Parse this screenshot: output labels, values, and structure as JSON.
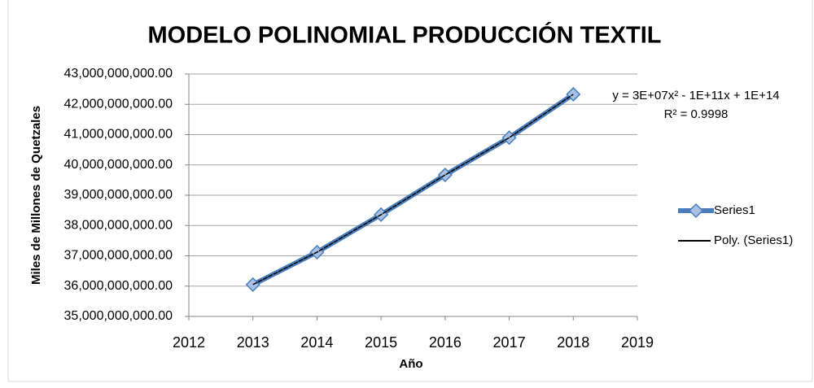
{
  "chart_data": {
    "type": "line",
    "title": "MODELO POLINOMIAL PRODUCCIÓN TEXTIL",
    "x_label": "Año",
    "y_label": "Miles de Millones de Quetzales",
    "x": [
      2013,
      2014,
      2015,
      2016,
      2017,
      2018
    ],
    "series": [
      {
        "name": "Series1",
        "color": "#4a7ebb",
        "values": [
          36050000000,
          37120000000,
          38360000000,
          39670000000,
          40900000000,
          42330000000
        ]
      }
    ],
    "trendline": {
      "name": "Poly. (Series1)",
      "color": "#000000"
    },
    "annotations": [
      "y = 3E+07x² - 1E+11x + 1E+14",
      "R² = 0.9998"
    ],
    "xlim": [
      2012,
      2019
    ],
    "xticks": [
      2012,
      2013,
      2014,
      2015,
      2016,
      2017,
      2018,
      2019
    ],
    "ylim": [
      35000000000,
      43000000000
    ],
    "yticks": [
      {
        "value": 35000000000,
        "label": "35,000,000,000.00"
      },
      {
        "value": 36000000000,
        "label": "36,000,000,000.00"
      },
      {
        "value": 37000000000,
        "label": "37,000,000,000.00"
      },
      {
        "value": 38000000000,
        "label": "38,000,000,000.00"
      },
      {
        "value": 39000000000,
        "label": "39,000,000,000.00"
      },
      {
        "value": 40000000000,
        "label": "40,000,000,000.00"
      },
      {
        "value": 41000000000,
        "label": "41,000,000,000.00"
      },
      {
        "value": 42000000000,
        "label": "42,000,000,000.00"
      },
      {
        "value": 43000000000,
        "label": "43,000,000,000.00"
      }
    ],
    "grid": true
  }
}
